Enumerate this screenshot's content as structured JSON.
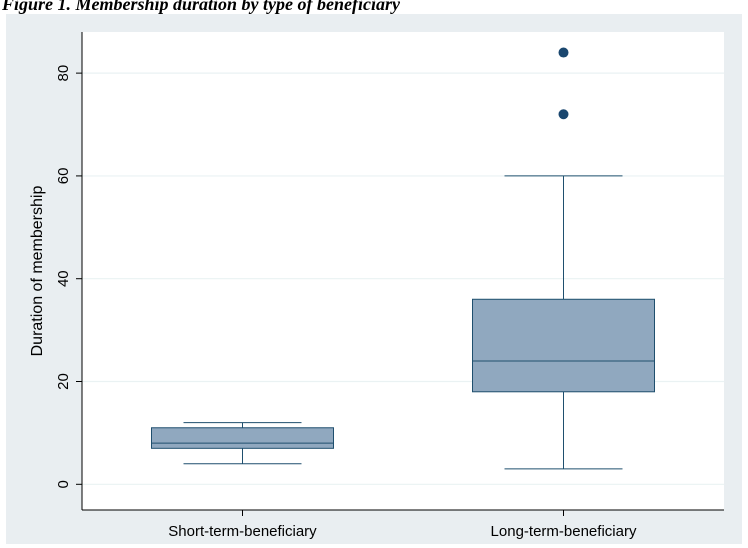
{
  "caption": "Figure 1. Membership duration by type of beneficiary",
  "chart_data": {
    "type": "box",
    "ylabel": "Duration of membership",
    "ylim": [
      -5,
      88
    ],
    "yticks": [
      0,
      20,
      40,
      60,
      80
    ],
    "grid": true,
    "categories": [
      "Short-term-beneficiary",
      "Long-term-beneficiary"
    ],
    "boxes": [
      {
        "category": "Short-term-beneficiary",
        "whisker_low": 4,
        "q1": 7,
        "median": 8,
        "q3": 11,
        "whisker_high": 12,
        "outliers": []
      },
      {
        "category": "Long-term-beneficiary",
        "whisker_low": 3,
        "q1": 18,
        "median": 24,
        "q3": 36,
        "whisker_high": 60,
        "outliers": [
          72,
          84
        ]
      }
    ],
    "colors": {
      "box_fill": "#90a8bf",
      "box_stroke": "#1f4f6e",
      "outlier": "#1a476f",
      "grid": "#eaf2f3",
      "plot_bg": "#ffffff"
    }
  }
}
